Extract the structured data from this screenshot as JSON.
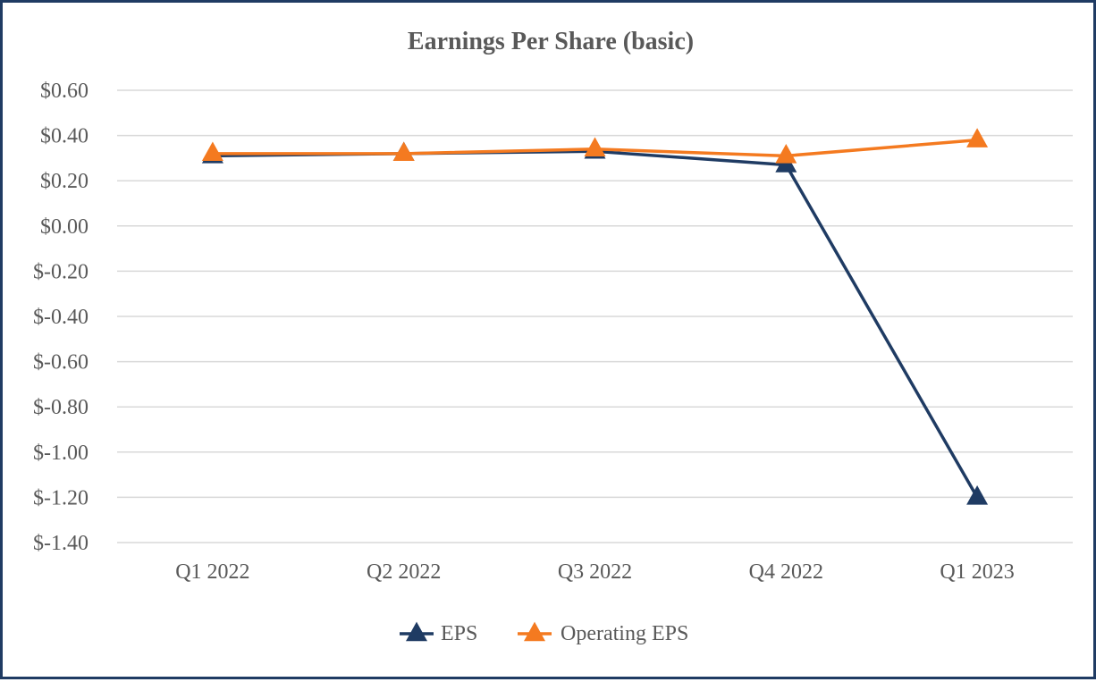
{
  "chart_data": {
    "type": "line",
    "title": "Earnings Per Share (basic)",
    "xlabel": "",
    "ylabel": "",
    "categories": [
      "Q1 2022",
      "Q2 2022",
      "Q3 2022",
      "Q4 2022",
      "Q1 2023"
    ],
    "ylim": [
      -1.4,
      0.6
    ],
    "yticks": [
      0.6,
      0.4,
      0.2,
      0.0,
      -0.2,
      -0.4,
      -0.6,
      -0.8,
      -1.0,
      -1.2,
      -1.4
    ],
    "ytick_labels": [
      "$0.60",
      "$0.40",
      "$0.20",
      "$0.00",
      "$-0.20",
      "$-0.40",
      "$-0.60",
      "$-0.80",
      "$-1.00",
      "$-1.20",
      "$-1.40"
    ],
    "grid": true,
    "legend_position": "bottom",
    "series": [
      {
        "name": "EPS",
        "color": "#1f3b63",
        "marker": "triangle",
        "values": [
          0.31,
          0.32,
          0.33,
          0.27,
          -1.2
        ]
      },
      {
        "name": "Operating EPS",
        "color": "#f47a20",
        "marker": "triangle",
        "values": [
          0.32,
          0.32,
          0.34,
          0.31,
          0.38
        ]
      }
    ]
  }
}
